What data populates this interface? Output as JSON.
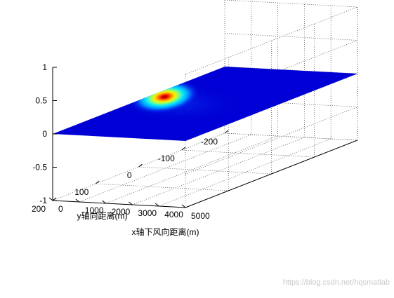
{
  "chart_data": {
    "type": "surface",
    "title": "",
    "xlabel": "x轴下风向距离(m)",
    "ylabel": "y轴向距离(m)",
    "zlabel": "",
    "xlim": [
      0,
      5000
    ],
    "ylim": [
      -200,
      200
    ],
    "zlim": [
      -1,
      1
    ],
    "x_ticks": [
      "0",
      "1000",
      "2000",
      "3000",
      "4000",
      "5000"
    ],
    "y_ticks": [
      "-200",
      "-100",
      "0",
      "100",
      "200"
    ],
    "z_ticks": [
      "-1",
      "-0.5",
      "0",
      "0.5",
      "1"
    ],
    "grid": true,
    "colormap": "jet",
    "surface_z": 0,
    "peak": {
      "x": 500,
      "y": 0
    }
  },
  "watermark": "https://blog.csdn.net/hqsmatlab"
}
